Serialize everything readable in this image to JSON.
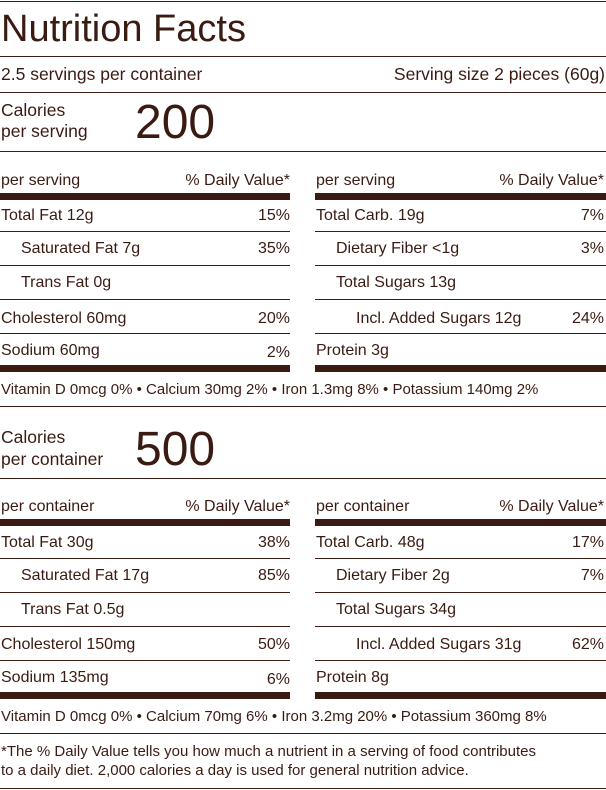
{
  "title": "Nutrition Facts",
  "servings": "2.5 servings per container",
  "serving_size": "Serving size 2 pieces (60g)",
  "per_serving": {
    "calories_label_1": "Calories",
    "calories_label_2": "per serving",
    "calories": "200",
    "left_header": "per serving",
    "left_dv": "% Daily Value*",
    "right_header": "per serving",
    "right_dv": "% Daily Value*",
    "left_rows": [
      {
        "name": "Total Fat 12g",
        "dv": "15%"
      },
      {
        "name": "Saturated Fat 7g",
        "dv": "35%"
      },
      {
        "name": "Trans Fat 0g",
        "dv": ""
      },
      {
        "name": "Cholesterol 60mg",
        "dv": "20%"
      },
      {
        "name": "Sodium 60mg",
        "dv": "2%"
      }
    ],
    "right_rows": [
      {
        "name": "Total Carb. 19g",
        "dv": "7%"
      },
      {
        "name": "Dietary Fiber <1g",
        "dv": "3%"
      },
      {
        "name": "Total Sugars 13g",
        "dv": ""
      },
      {
        "name": "Incl. Added Sugars 12g",
        "dv": "24%"
      },
      {
        "name": "Protein 3g",
        "dv": ""
      }
    ],
    "vitamins": "Vitamin D 0mcg 0% • Calcium 30mg 2% • Iron 1.3mg 8% • Potassium 140mg 2%"
  },
  "per_container": {
    "calories_label_1": "Calories",
    "calories_label_2": "per container",
    "calories": "500",
    "left_header": "per container",
    "left_dv": "% Daily Value*",
    "right_header": "per container",
    "right_dv": "% Daily Value*",
    "left_rows": [
      {
        "name": "Total Fat 30g",
        "dv": "38%"
      },
      {
        "name": "Saturated Fat 17g",
        "dv": "85%"
      },
      {
        "name": "Trans Fat 0.5g",
        "dv": ""
      },
      {
        "name": "Cholesterol 150mg",
        "dv": "50%"
      },
      {
        "name": "Sodium 135mg",
        "dv": "6%"
      }
    ],
    "right_rows": [
      {
        "name": "Total Carb. 48g",
        "dv": "17%"
      },
      {
        "name": "Dietary Fiber 2g",
        "dv": "7%"
      },
      {
        "name": "Total Sugars 34g",
        "dv": ""
      },
      {
        "name": "Incl. Added Sugars 31g",
        "dv": "62%"
      },
      {
        "name": "Protein 8g",
        "dv": ""
      }
    ],
    "vitamins": "Vitamin D 0mcg 0% • Calcium 70mg 6% • Iron 3.2mg 20% • Potassium 360mg 8%"
  },
  "footnote_1": "*The % Daily Value tells you how much a nutrient in a serving of food contributes",
  "footnote_2": "to a daily diet. 2,000 calories a day is used for general nutrition advice."
}
